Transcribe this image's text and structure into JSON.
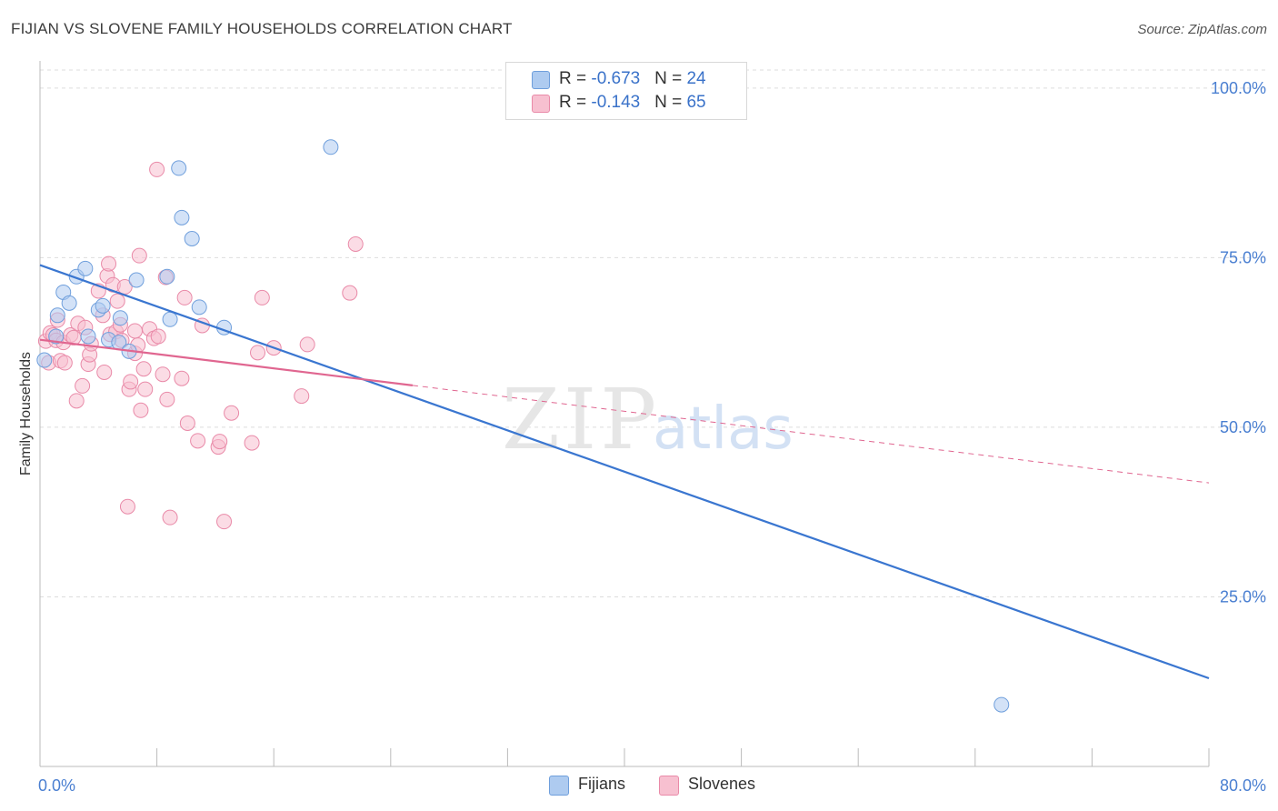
{
  "header": {
    "title": "FIJIAN VS SLOVENE FAMILY HOUSEHOLDS CORRELATION CHART",
    "source": "Source: ZipAtlas.com"
  },
  "legend": {
    "fijians": {
      "r_label": "R = ",
      "r_value": "-0.673",
      "n_label": "N = ",
      "n_value": "24"
    },
    "slovenes": {
      "r_label": "R = ",
      "r_value": "-0.143",
      "n_label": "N = ",
      "n_value": "65"
    }
  },
  "bottom_legend": {
    "fijians": "Fijians",
    "slovenes": "Slovenes"
  },
  "watermark": {
    "zip": "ZIP",
    "atlas": "atlas"
  },
  "colors": {
    "fijians_fill": "#aecbf0",
    "fijians_stroke": "#6f9fdc",
    "fijians_line": "#3a76d0",
    "slovenes_fill": "#f7c0d0",
    "slovenes_stroke": "#e98aa8",
    "slovenes_line": "#e06690",
    "grid": "#dddddd",
    "tick_text": "#4a7fd1"
  },
  "chart_data": {
    "type": "scatter",
    "title": "FIJIAN VS SLOVENE FAMILY HOUSEHOLDS CORRELATION CHART",
    "xlabel": "",
    "ylabel": "Family Households",
    "xlim": [
      0,
      80
    ],
    "ylim": [
      0,
      104
    ],
    "x_tick_labels": [
      {
        "value": 0,
        "label": "0.0%"
      },
      {
        "value": 80,
        "label": "80.0%"
      }
    ],
    "x_minor_ticks": [
      0,
      8,
      16,
      24,
      32,
      40,
      48,
      56,
      64,
      72,
      80
    ],
    "y_ticks": [
      {
        "value": 25,
        "label": "25.0%"
      },
      {
        "value": 50,
        "label": "50.0%"
      },
      {
        "value": 75,
        "label": "75.0%"
      },
      {
        "value": 100,
        "label": "100.0%"
      }
    ],
    "grid": true,
    "series": [
      {
        "name": "Fijians",
        "r": -0.673,
        "n": 24,
        "points": [
          [
            0.3,
            59.9
          ],
          [
            1.1,
            63.4
          ],
          [
            1.2,
            66.5
          ],
          [
            1.6,
            69.9
          ],
          [
            2.0,
            68.3
          ],
          [
            2.5,
            72.2
          ],
          [
            3.1,
            73.4
          ],
          [
            3.3,
            63.4
          ],
          [
            4.0,
            67.3
          ],
          [
            4.3,
            67.9
          ],
          [
            4.7,
            62.9
          ],
          [
            5.4,
            62.5
          ],
          [
            5.5,
            66.1
          ],
          [
            6.1,
            61.2
          ],
          [
            6.6,
            71.7
          ],
          [
            8.7,
            72.2
          ],
          [
            8.9,
            65.9
          ],
          [
            9.5,
            88.2
          ],
          [
            9.7,
            80.9
          ],
          [
            10.4,
            77.8
          ],
          [
            10.9,
            67.7
          ],
          [
            12.6,
            64.7
          ],
          [
            19.9,
            91.3
          ],
          [
            65.8,
            9.1
          ]
        ],
        "trend": {
          "x": [
            0,
            80
          ],
          "y": [
            73.9,
            13.0
          ],
          "style": "solid"
        }
      },
      {
        "name": "Slovenes",
        "r": -0.143,
        "n": 65,
        "points": [
          [
            0.4,
            62.7
          ],
          [
            0.6,
            59.5
          ],
          [
            0.7,
            63.9
          ],
          [
            0.9,
            63.6
          ],
          [
            1.1,
            62.8
          ],
          [
            1.2,
            65.8
          ],
          [
            1.4,
            59.8
          ],
          [
            1.6,
            62.5
          ],
          [
            1.7,
            59.5
          ],
          [
            2.1,
            63.6
          ],
          [
            2.3,
            63.2
          ],
          [
            2.5,
            53.9
          ],
          [
            2.6,
            65.3
          ],
          [
            2.9,
            56.1
          ],
          [
            3.1,
            64.7
          ],
          [
            3.3,
            59.3
          ],
          [
            3.4,
            60.7
          ],
          [
            3.5,
            62.3
          ],
          [
            4.0,
            70.1
          ],
          [
            4.3,
            66.5
          ],
          [
            4.4,
            58.1
          ],
          [
            4.6,
            72.3
          ],
          [
            4.7,
            74.1
          ],
          [
            4.8,
            63.7
          ],
          [
            5.0,
            71.0
          ],
          [
            5.2,
            64.1
          ],
          [
            5.3,
            68.6
          ],
          [
            5.5,
            65.1
          ],
          [
            5.6,
            62.8
          ],
          [
            5.8,
            70.7
          ],
          [
            6.0,
            38.3
          ],
          [
            6.1,
            55.6
          ],
          [
            6.2,
            56.7
          ],
          [
            6.5,
            60.9
          ],
          [
            6.7,
            62.1
          ],
          [
            6.8,
            75.3
          ],
          [
            6.9,
            52.5
          ],
          [
            7.1,
            58.6
          ],
          [
            7.2,
            55.6
          ],
          [
            7.5,
            64.5
          ],
          [
            7.8,
            63.1
          ],
          [
            8.0,
            88.0
          ],
          [
            8.1,
            63.4
          ],
          [
            8.4,
            57.8
          ],
          [
            8.6,
            72.1
          ],
          [
            8.7,
            54.1
          ],
          [
            8.9,
            36.7
          ],
          [
            9.7,
            57.2
          ],
          [
            9.9,
            69.1
          ],
          [
            10.1,
            50.6
          ],
          [
            10.8,
            48.0
          ],
          [
            11.1,
            65.0
          ],
          [
            12.2,
            47.1
          ],
          [
            12.3,
            47.9
          ],
          [
            12.6,
            36.1
          ],
          [
            13.1,
            52.1
          ],
          [
            14.5,
            47.7
          ],
          [
            14.9,
            61.0
          ],
          [
            15.2,
            69.1
          ],
          [
            16.0,
            61.7
          ],
          [
            17.9,
            54.6
          ],
          [
            18.3,
            62.2
          ],
          [
            21.2,
            69.8
          ],
          [
            21.6,
            77.0
          ],
          [
            6.5,
            64.2
          ]
        ],
        "trend": {
          "x": [
            0,
            80
          ],
          "y": [
            62.9,
            41.8
          ],
          "solid_until_x": 25.5,
          "style": "solid-then-dashed"
        }
      }
    ]
  }
}
